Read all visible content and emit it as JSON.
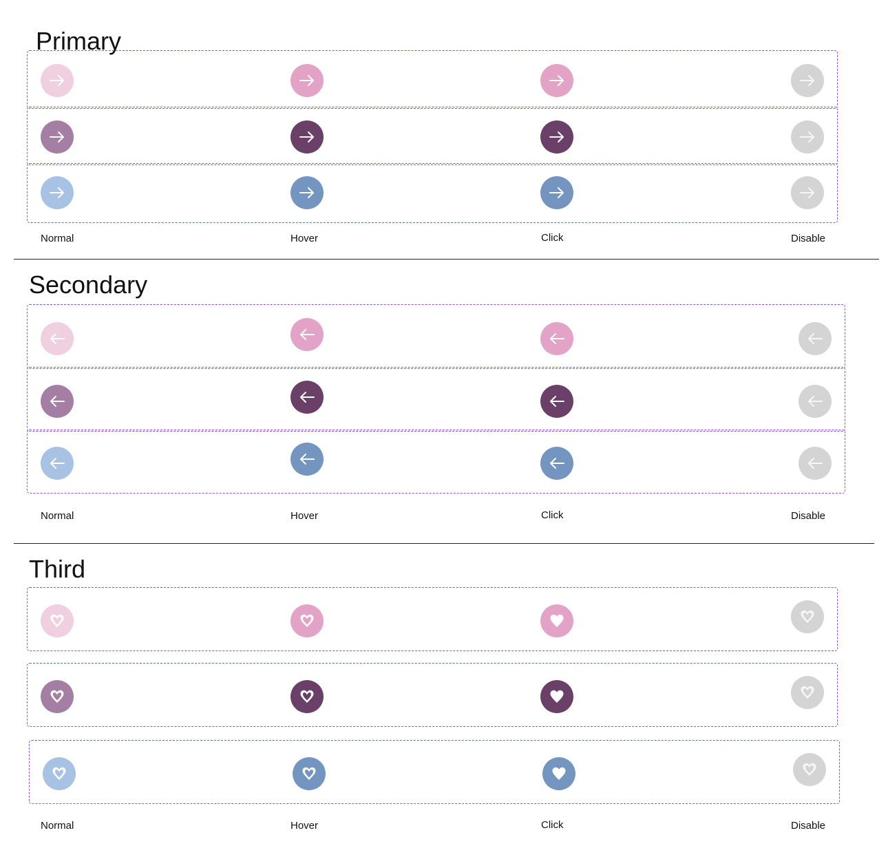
{
  "colors": {
    "pink_normal": "#f0cfe0",
    "pink_active": "#e3a3c6",
    "plum_normal": "#a47ea3",
    "plum_active": "#6a4068",
    "blue_normal": "#a8c2e3",
    "blue_active": "#7395bf",
    "disabled": "#d4d4d4",
    "dash_border": "#8e4fd6"
  },
  "sections": [
    {
      "title": "Primary",
      "icon": "arrow-right-icon",
      "labels": [
        "Normal",
        "Hover",
        "Click",
        "Disable"
      ]
    },
    {
      "title": "Secondary",
      "icon": "arrow-left-icon",
      "labels": [
        "Normal",
        "Hover",
        "Click",
        "Disable"
      ]
    },
    {
      "title": "Third",
      "icon": "heart-icon",
      "labels": [
        "Normal",
        "Hover",
        "Click",
        "Disable"
      ]
    }
  ],
  "states": [
    "normal",
    "hover",
    "click",
    "disable"
  ]
}
